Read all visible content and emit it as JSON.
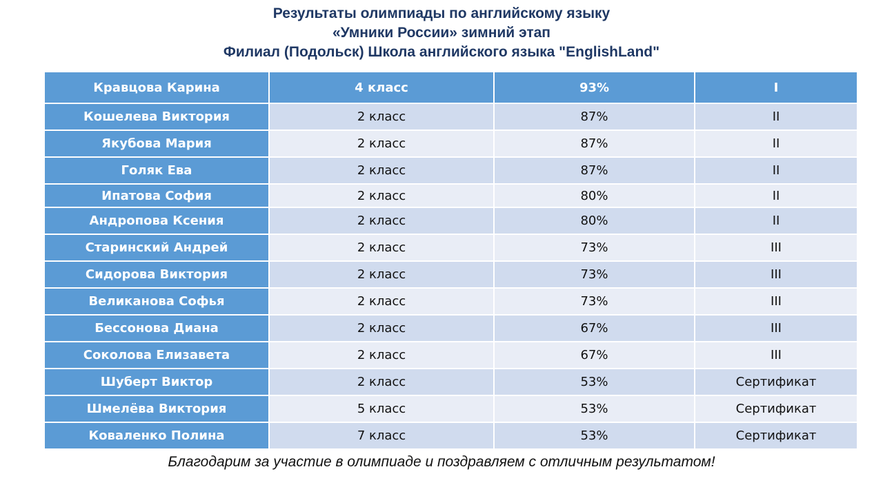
{
  "title": [
    "Результаты олимпиады по английскому языку",
    "«Умники России» зимний этап",
    "Филиал (Подольск) Школа английского языка \"EnglishLand\""
  ],
  "rows": [
    {
      "name": "Кравцова Карина",
      "grade": "4 класс",
      "score": "93%",
      "place": "I"
    },
    {
      "name": "Кошелева Виктория",
      "grade": "2 класс",
      "score": "87%",
      "place": "II"
    },
    {
      "name": "Якубова Мария",
      "grade": "2 класс",
      "score": "87%",
      "place": "II"
    },
    {
      "name": "Голяк Ева",
      "grade": "2 класс",
      "score": "87%",
      "place": "II"
    },
    {
      "name": "Ипатова София",
      "grade": "2 класс",
      "score": "80%",
      "place": "II"
    },
    {
      "name": "Андропова Ксения",
      "grade": "2 класс",
      "score": "80%",
      "place": "II"
    },
    {
      "name": "Старинский Андрей",
      "grade": "2 класс",
      "score": "73%",
      "place": "III"
    },
    {
      "name": "Сидорова Виктория",
      "grade": "2 класс",
      "score": "73%",
      "place": "III"
    },
    {
      "name": "Великанова Софья",
      "grade": "2 класс",
      "score": "73%",
      "place": "III"
    },
    {
      "name": "Бессонова Диана",
      "grade": "2 класс",
      "score": "67%",
      "place": "III"
    },
    {
      "name": "Соколова Елизавета",
      "grade": "2 класс",
      "score": "67%",
      "place": "III"
    },
    {
      "name": "Шуберт Виктор",
      "grade": "2 класс",
      "score": "53%",
      "place": "Сертификат"
    },
    {
      "name": "Шмелёва Виктория",
      "grade": "5 класс",
      "score": "53%",
      "place": "Сертификат"
    },
    {
      "name": "Коваленко Полина",
      "grade": "7 класс",
      "score": "53%",
      "place": "Сертификат"
    }
  ],
  "footer": "Благодарим за участие в олимпиаде и поздравляем с отличным результатом!",
  "colors": {
    "title": "#1f3864",
    "header": "#5b9bd5",
    "row_dark": "#d0dbee",
    "row_light": "#e9edf6"
  }
}
